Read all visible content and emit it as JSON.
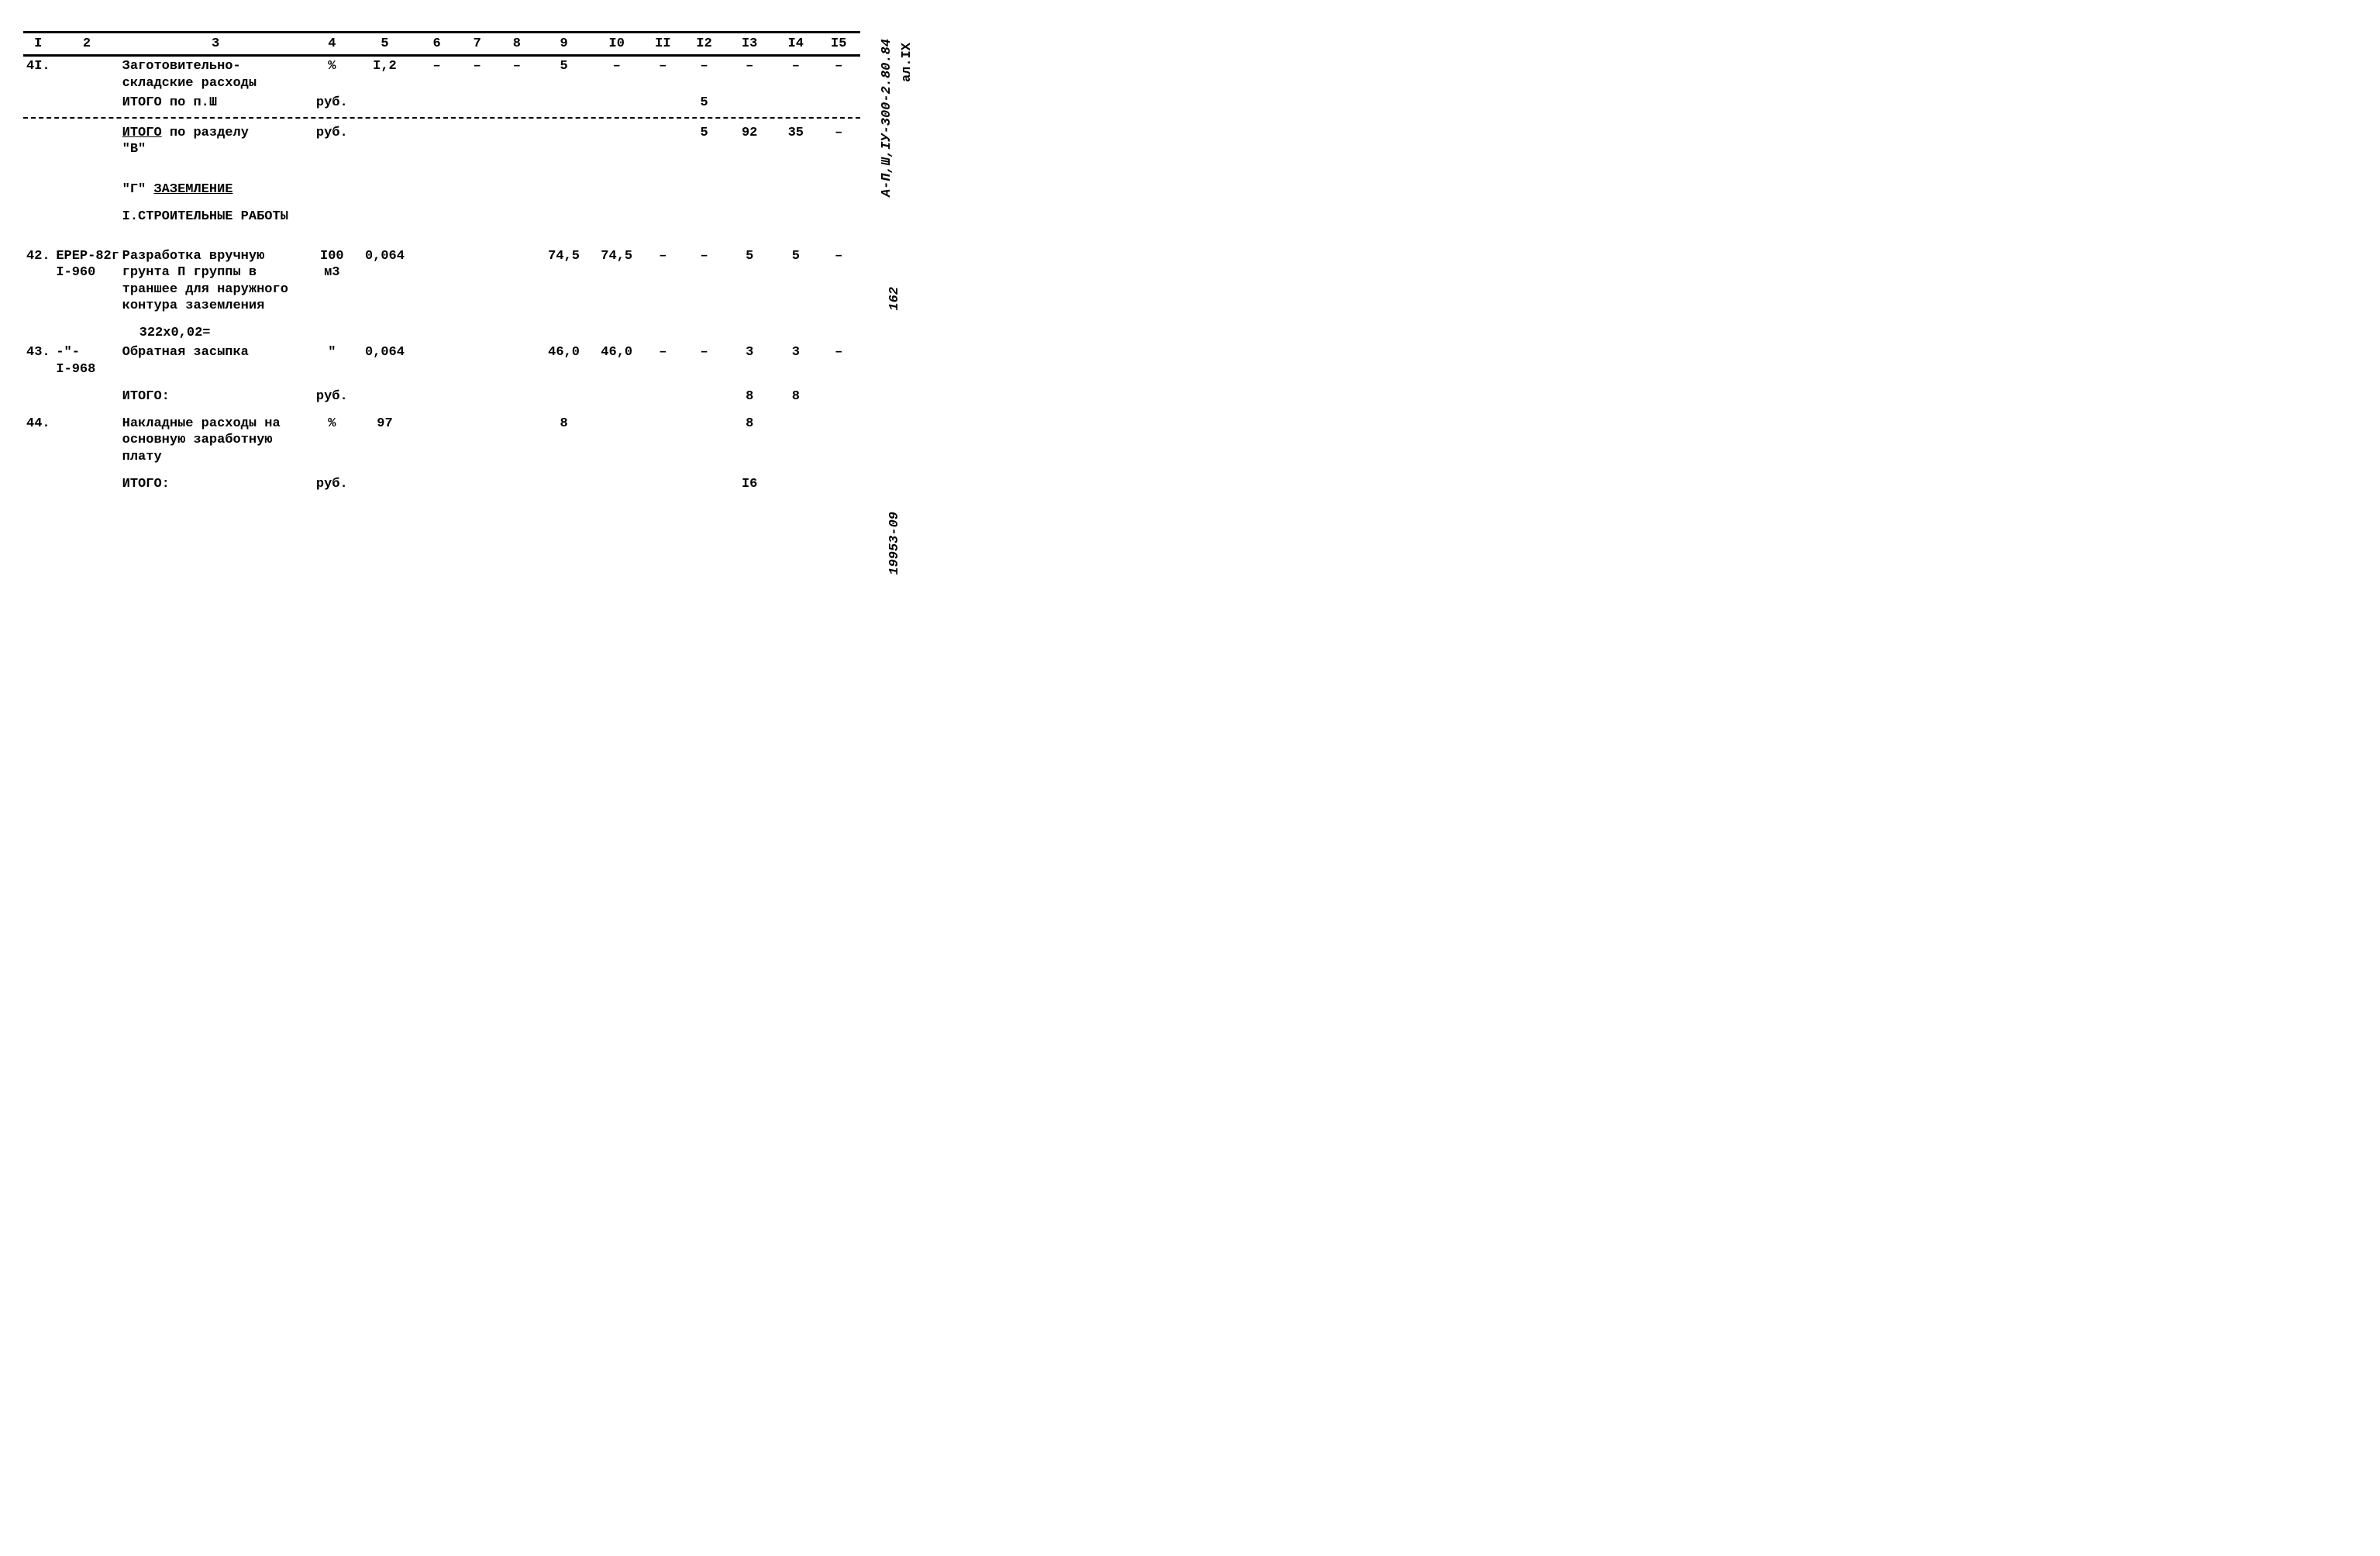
{
  "headers": [
    "I",
    "2",
    "3",
    "4",
    "5",
    "6",
    "7",
    "8",
    "9",
    "I0",
    "II",
    "I2",
    "I3",
    "I4",
    "I5"
  ],
  "side": {
    "doc_code": "А-П,Ш,IУ-300-2.80.84",
    "doc_code_sub": "ал.IX",
    "page_num": "162",
    "reg_num": "19953-09"
  },
  "rows": [
    {
      "num": "4I.",
      "code": "",
      "desc": "Заготовительно-складские расходы",
      "unit": "%",
      "c5": "I,2",
      "c6": "–",
      "c7": "–",
      "c8": "–",
      "c9": "5",
      "c10": "–",
      "c11": "–",
      "c12": "–",
      "c13": "–",
      "c14": "–",
      "c15": "–"
    },
    {
      "num": "",
      "code": "",
      "desc": "ИТОГО по п.Ш",
      "unit": "руб.",
      "c5": "",
      "c6": "",
      "c7": "",
      "c8": "",
      "c9": "",
      "c10": "",
      "c11": "",
      "c12": "5",
      "c13": "",
      "c14": "",
      "c15": ""
    },
    {
      "sep": true
    },
    {
      "num": "",
      "code": "",
      "desc_html": "<span class='underline'>ИТОГО</span> по разделу<br>\"В\"",
      "unit": "руб.",
      "c5": "",
      "c6": "",
      "c7": "",
      "c8": "",
      "c9": "",
      "c10": "",
      "c11": "",
      "c12": "5",
      "c13": "92",
      "c14": "35",
      "c15": "–"
    },
    {
      "spacer": true
    },
    {
      "num": "",
      "code": "",
      "desc_html": "\"Г\" <span class='underline'>ЗАЗЕМЛЕНИЕ</span>",
      "unit": "",
      "c5": "",
      "c6": "",
      "c7": "",
      "c8": "",
      "c9": "",
      "c10": "",
      "c11": "",
      "c12": "",
      "c13": "",
      "c14": "",
      "c15": ""
    },
    {
      "spacer_small": true
    },
    {
      "num": "",
      "code": "",
      "desc": "I.СТРОИТЕЛЬНЫЕ РАБОТЫ",
      "unit": "",
      "c5": "",
      "c6": "",
      "c7": "",
      "c8": "",
      "c9": "",
      "c10": "",
      "c11": "",
      "c12": "",
      "c13": "",
      "c14": "",
      "c15": ""
    },
    {
      "spacer": true
    },
    {
      "num": "42.",
      "code": "ЕРЕР-82г<br>I-960",
      "desc": "Разработка вручную грунта П группы в траншее для наружного контура заземления",
      "unit": "I00<br>м3",
      "c5": "0,064",
      "c6": "",
      "c7": "",
      "c8": "",
      "c9": "74,5",
      "c10": "74,5",
      "c11": "–",
      "c12": "–",
      "c13": "5",
      "c14": "5",
      "c15": "–"
    },
    {
      "spacer_small": true
    },
    {
      "num": "",
      "code": "",
      "desc_indent": "322х0,02=",
      "unit": "",
      "c5": "",
      "c6": "",
      "c7": "",
      "c8": "",
      "c9": "",
      "c10": "",
      "c11": "",
      "c12": "",
      "c13": "",
      "c14": "",
      "c15": ""
    },
    {
      "num": "43.",
      "code": "-\"-<br>I-968",
      "desc": "Обратная засыпка",
      "unit": "\"",
      "c5": "0,064",
      "c6": "",
      "c7": "",
      "c8": "",
      "c9": "46,0",
      "c10": "46,0",
      "c11": "–",
      "c12": "–",
      "c13": "3",
      "c14": "3",
      "c15": "–"
    },
    {
      "spacer_small": true
    },
    {
      "num": "",
      "code": "",
      "desc": "ИТОГО:",
      "unit": "руб.",
      "c5": "",
      "c6": "",
      "c7": "",
      "c8": "",
      "c9": "",
      "c10": "",
      "c11": "",
      "c12": "",
      "c13": "8",
      "c14": "8",
      "c15": ""
    },
    {
      "spacer_small": true
    },
    {
      "num": "44.",
      "code": "",
      "desc": "Накладные расходы на основную заработную плату",
      "unit": "%",
      "c5": "97",
      "c6": "",
      "c7": "",
      "c8": "",
      "c9": "8",
      "c10": "",
      "c11": "",
      "c12": "",
      "c13": "8",
      "c14": "",
      "c15": ""
    },
    {
      "spacer_small": true
    },
    {
      "num": "",
      "code": "",
      "desc": "ИТОГО:",
      "unit": "руб.",
      "c5": "",
      "c6": "",
      "c7": "",
      "c8": "",
      "c9": "",
      "c10": "",
      "c11": "",
      "c12": "",
      "c13": "I6",
      "c14": "",
      "c15": ""
    }
  ]
}
